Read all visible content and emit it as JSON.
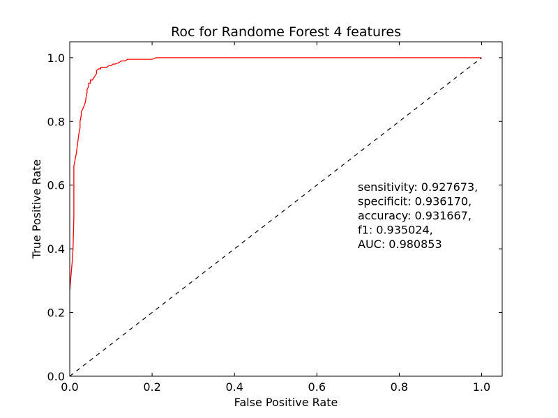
{
  "chart_data": {
    "type": "line",
    "title": "Roc for Randome Forest 4 features",
    "xlabel": "False Positive Rate",
    "ylabel": "True Positive Rate",
    "xlim": [
      0.0,
      1.05
    ],
    "ylim": [
      0.0,
      1.05
    ],
    "xticks": [
      "0.0",
      "0.2",
      "0.4",
      "0.6",
      "0.8",
      "1.0"
    ],
    "yticks": [
      "0.0",
      "0.2",
      "0.4",
      "0.6",
      "0.8",
      "1.0"
    ],
    "grid": false,
    "legend": "none",
    "series": [
      {
        "style": "solid",
        "color": "#ff0000",
        "x": [
          0.0,
          0.002,
          0.004,
          0.006,
          0.008,
          0.01,
          0.01,
          0.013,
          0.016,
          0.018,
          0.02,
          0.022,
          0.025,
          0.025,
          0.028,
          0.028,
          0.032,
          0.035,
          0.038,
          0.04,
          0.042,
          0.042,
          0.046,
          0.046,
          0.05,
          0.05,
          0.055,
          0.06,
          0.065,
          0.065,
          0.07,
          0.075,
          0.075,
          0.09,
          0.095,
          0.1,
          0.105,
          0.11,
          0.12,
          0.125,
          0.13,
          0.135,
          0.14,
          0.145,
          0.15,
          0.2,
          0.21,
          0.22,
          1.0
        ],
        "y": [
          0.27,
          0.3,
          0.33,
          0.36,
          0.4,
          0.5,
          0.66,
          0.68,
          0.7,
          0.72,
          0.74,
          0.76,
          0.78,
          0.8,
          0.82,
          0.83,
          0.84,
          0.85,
          0.86,
          0.88,
          0.89,
          0.9,
          0.91,
          0.92,
          0.92,
          0.93,
          0.93,
          0.94,
          0.95,
          0.96,
          0.965,
          0.965,
          0.97,
          0.97,
          0.975,
          0.975,
          0.98,
          0.98,
          0.985,
          0.99,
          0.99,
          0.99,
          0.995,
          0.995,
          0.995,
          0.995,
          1.0,
          1.0,
          1.0
        ]
      },
      {
        "style": "dashed",
        "color": "#000000",
        "x": [
          0.0,
          1.0
        ],
        "y": [
          0.0,
          1.0
        ]
      }
    ],
    "annotation": [
      "sensitivity: 0.927673,",
      "specificit: 0.936170,",
      "accuracy: 0.931667,",
      "f1: 0.935024,",
      "AUC: 0.980853"
    ]
  }
}
